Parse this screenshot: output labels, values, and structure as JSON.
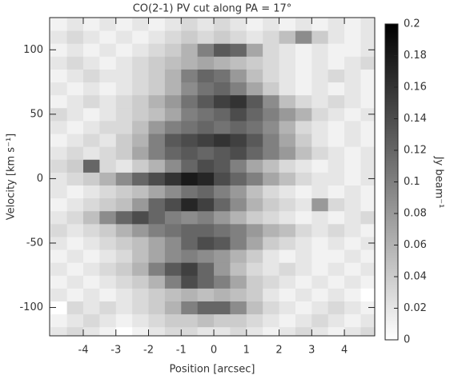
{
  "chart_data": {
    "type": "heatmap",
    "title": "CO(2-1) PV cut along PA = 17°",
    "x_label": "Position [arcsec]",
    "y_label": "Velocity [km s⁻¹]",
    "colorbar_label": "Jy beam⁻¹",
    "x": [
      -4.75,
      -4.25,
      -3.75,
      -3.25,
      -2.75,
      -2.25,
      -1.75,
      -1.25,
      -0.75,
      -0.25,
      0.25,
      0.75,
      1.25,
      1.75,
      2.25,
      2.75,
      3.25,
      3.75,
      4.25,
      4.75
    ],
    "y": [
      -120,
      -110,
      -100,
      -90,
      -80,
      -70,
      -60,
      -50,
      -40,
      -30,
      -20,
      -10,
      0,
      10,
      20,
      30,
      40,
      50,
      60,
      70,
      80,
      90,
      100,
      110,
      120
    ],
    "z": [
      [
        0.02,
        0.03,
        0.02,
        0.01,
        0,
        0.01,
        0.02,
        0.03,
        0.03,
        0.02,
        0.02,
        0.03,
        0.02,
        0.01,
        0.02,
        0.03,
        0.02,
        0.01,
        0.02,
        0.03
      ],
      [
        0.01,
        0.02,
        0.03,
        0.02,
        0.01,
        0.02,
        0.03,
        0.04,
        0.04,
        0.05,
        0.04,
        0.04,
        0.03,
        0.02,
        0.01,
        0.02,
        0.03,
        0.02,
        0.01,
        0.02
      ],
      [
        0,
        0.03,
        0.02,
        0.03,
        0.02,
        0.03,
        0.04,
        0.06,
        0.1,
        0.12,
        0.12,
        0.09,
        0.05,
        0.03,
        0.02,
        0.01,
        0.02,
        0.03,
        0.02,
        0.01
      ],
      [
        0.02,
        0.01,
        0.02,
        0.01,
        0.02,
        0.03,
        0.04,
        0.05,
        0.06,
        0.05,
        0.06,
        0.05,
        0.04,
        0.02,
        0.01,
        0.02,
        0.01,
        0.02,
        0.01,
        0
      ],
      [
        0.01,
        0.02,
        0.01,
        0.02,
        0.03,
        0.04,
        0.06,
        0.1,
        0.14,
        0.12,
        0.1,
        0.07,
        0.04,
        0.03,
        0.02,
        0.01,
        0.02,
        0.01,
        0.02,
        0.01
      ],
      [
        0.02,
        0.01,
        0.02,
        0.03,
        0.04,
        0.06,
        0.1,
        0.13,
        0.15,
        0.12,
        0.08,
        0.05,
        0.03,
        0.02,
        0.03,
        0.02,
        0.01,
        0.02,
        0.01,
        0.02
      ],
      [
        0.01,
        0.02,
        0.01,
        0.02,
        0.03,
        0.05,
        0.07,
        0.09,
        0.1,
        0.09,
        0.08,
        0.06,
        0.04,
        0.02,
        0.01,
        0.02,
        0.01,
        0.01,
        0.02,
        0.01
      ],
      [
        0.02,
        0.01,
        0.02,
        0.03,
        0.04,
        0.05,
        0.07,
        0.09,
        0.12,
        0.14,
        0.13,
        0.1,
        0.07,
        0.04,
        0.03,
        0.02,
        0.01,
        0.02,
        0.01,
        0.02
      ],
      [
        0.03,
        0.02,
        0.03,
        0.04,
        0.06,
        0.08,
        0.1,
        0.11,
        0.12,
        0.12,
        0.11,
        0.1,
        0.08,
        0.06,
        0.05,
        0.03,
        0.02,
        0.03,
        0.02,
        0.01
      ],
      [
        0.02,
        0.03,
        0.05,
        0.09,
        0.12,
        0.14,
        0.12,
        0.1,
        0.09,
        0.1,
        0.08,
        0.06,
        0.04,
        0.03,
        0.02,
        0.01,
        0.02,
        0.01,
        0.02,
        0.03
      ],
      [
        0.01,
        0.02,
        0.03,
        0.04,
        0.05,
        0.08,
        0.12,
        0.14,
        0.17,
        0.15,
        0.12,
        0.09,
        0.06,
        0.04,
        0.03,
        0.02,
        0.08,
        0.03,
        0.02,
        0.01
      ],
      [
        0.02,
        0.01,
        0.02,
        0.03,
        0.04,
        0.05,
        0.07,
        0.09,
        0.11,
        0.12,
        0.1,
        0.08,
        0.05,
        0.03,
        0.02,
        0.01,
        0.02,
        0.01,
        0.02,
        0.01
      ],
      [
        0.02,
        0.03,
        0.04,
        0.06,
        0.09,
        0.12,
        0.14,
        0.16,
        0.18,
        0.17,
        0.14,
        0.12,
        0.1,
        0.07,
        0.05,
        0.03,
        0.02,
        0.02,
        0.01,
        0.02
      ],
      [
        0.03,
        0.04,
        0.12,
        0.03,
        0.02,
        0.04,
        0.06,
        0.09,
        0.12,
        0.14,
        0.13,
        0.1,
        0.07,
        0.05,
        0.03,
        0.02,
        0.01,
        0.02,
        0.01,
        0.02
      ],
      [
        0.02,
        0.03,
        0.02,
        0.03,
        0.04,
        0.07,
        0.1,
        0.12,
        0.13,
        0.12,
        0.13,
        0.14,
        0.12,
        0.1,
        0.08,
        0.05,
        0.03,
        0.02,
        0.01,
        0.02
      ],
      [
        0.01,
        0.02,
        0.03,
        0.02,
        0.04,
        0.06,
        0.1,
        0.13,
        0.14,
        0.15,
        0.16,
        0.15,
        0.13,
        0.1,
        0.07,
        0.04,
        0.02,
        0.01,
        0.02,
        0.01
      ],
      [
        0.02,
        0.01,
        0.02,
        0.03,
        0.03,
        0.05,
        0.08,
        0.1,
        0.11,
        0.12,
        0.11,
        0.12,
        0.11,
        0.09,
        0.06,
        0.03,
        0.02,
        0.01,
        0.02,
        0.01
      ],
      [
        0.03,
        0.02,
        0.01,
        0.02,
        0.03,
        0.04,
        0.05,
        0.07,
        0.1,
        0.11,
        0.12,
        0.14,
        0.12,
        0.1,
        0.08,
        0.06,
        0.03,
        0.02,
        0.01,
        0.02
      ],
      [
        0.01,
        0.02,
        0.03,
        0.02,
        0.03,
        0.04,
        0.06,
        0.08,
        0.11,
        0.13,
        0.15,
        0.16,
        0.13,
        0.09,
        0.05,
        0.03,
        0.02,
        0.03,
        0.02,
        0.01
      ],
      [
        0.02,
        0.01,
        0.02,
        0.01,
        0.02,
        0.03,
        0.04,
        0.06,
        0.09,
        0.11,
        0.12,
        0.1,
        0.07,
        0.04,
        0.02,
        0.01,
        0.02,
        0.01,
        0.02,
        0.01
      ],
      [
        0.01,
        0.02,
        0.03,
        0.02,
        0.02,
        0.03,
        0.04,
        0.06,
        0.1,
        0.12,
        0.11,
        0.08,
        0.05,
        0.03,
        0.02,
        0.01,
        0.02,
        0.03,
        0.02,
        0.01
      ],
      [
        0.02,
        0.03,
        0.02,
        0.01,
        0.02,
        0.03,
        0.04,
        0.05,
        0.06,
        0.07,
        0.06,
        0.05,
        0.04,
        0.03,
        0.02,
        0.01,
        0.02,
        0.01,
        0.02,
        0.03
      ],
      [
        0.01,
        0.02,
        0.01,
        0.02,
        0.01,
        0.02,
        0.03,
        0.04,
        0.06,
        0.1,
        0.13,
        0.12,
        0.07,
        0.03,
        0.02,
        0.01,
        0.02,
        0.01,
        0.01,
        0.02
      ],
      [
        0.02,
        0.03,
        0.02,
        0.01,
        0.02,
        0.01,
        0.02,
        0.03,
        0.04,
        0.03,
        0.04,
        0.03,
        0.02,
        0.03,
        0.05,
        0.09,
        0.04,
        0.02,
        0.01,
        0.02
      ],
      [
        0.01,
        0.02,
        0.01,
        0.02,
        0.01,
        0.02,
        0.01,
        0.02,
        0.03,
        0.02,
        0.03,
        0.02,
        0.01,
        0.02,
        0.01,
        0.02,
        0.01,
        0.02,
        0.01,
        0.02
      ]
    ],
    "xlim": [
      -5.03,
      4.93
    ],
    "ylim": [
      -122,
      125
    ],
    "xticks": [
      -4,
      -3,
      -2,
      -1,
      0,
      1,
      2,
      3,
      4
    ],
    "yticks": [
      -100,
      -50,
      0,
      50,
      100
    ],
    "clim": [
      0,
      0.2
    ],
    "cticks": [
      0,
      0.02,
      0.04,
      0.06,
      0.08,
      0.1,
      0.12,
      0.14,
      0.16,
      0.18,
      0.2
    ]
  }
}
